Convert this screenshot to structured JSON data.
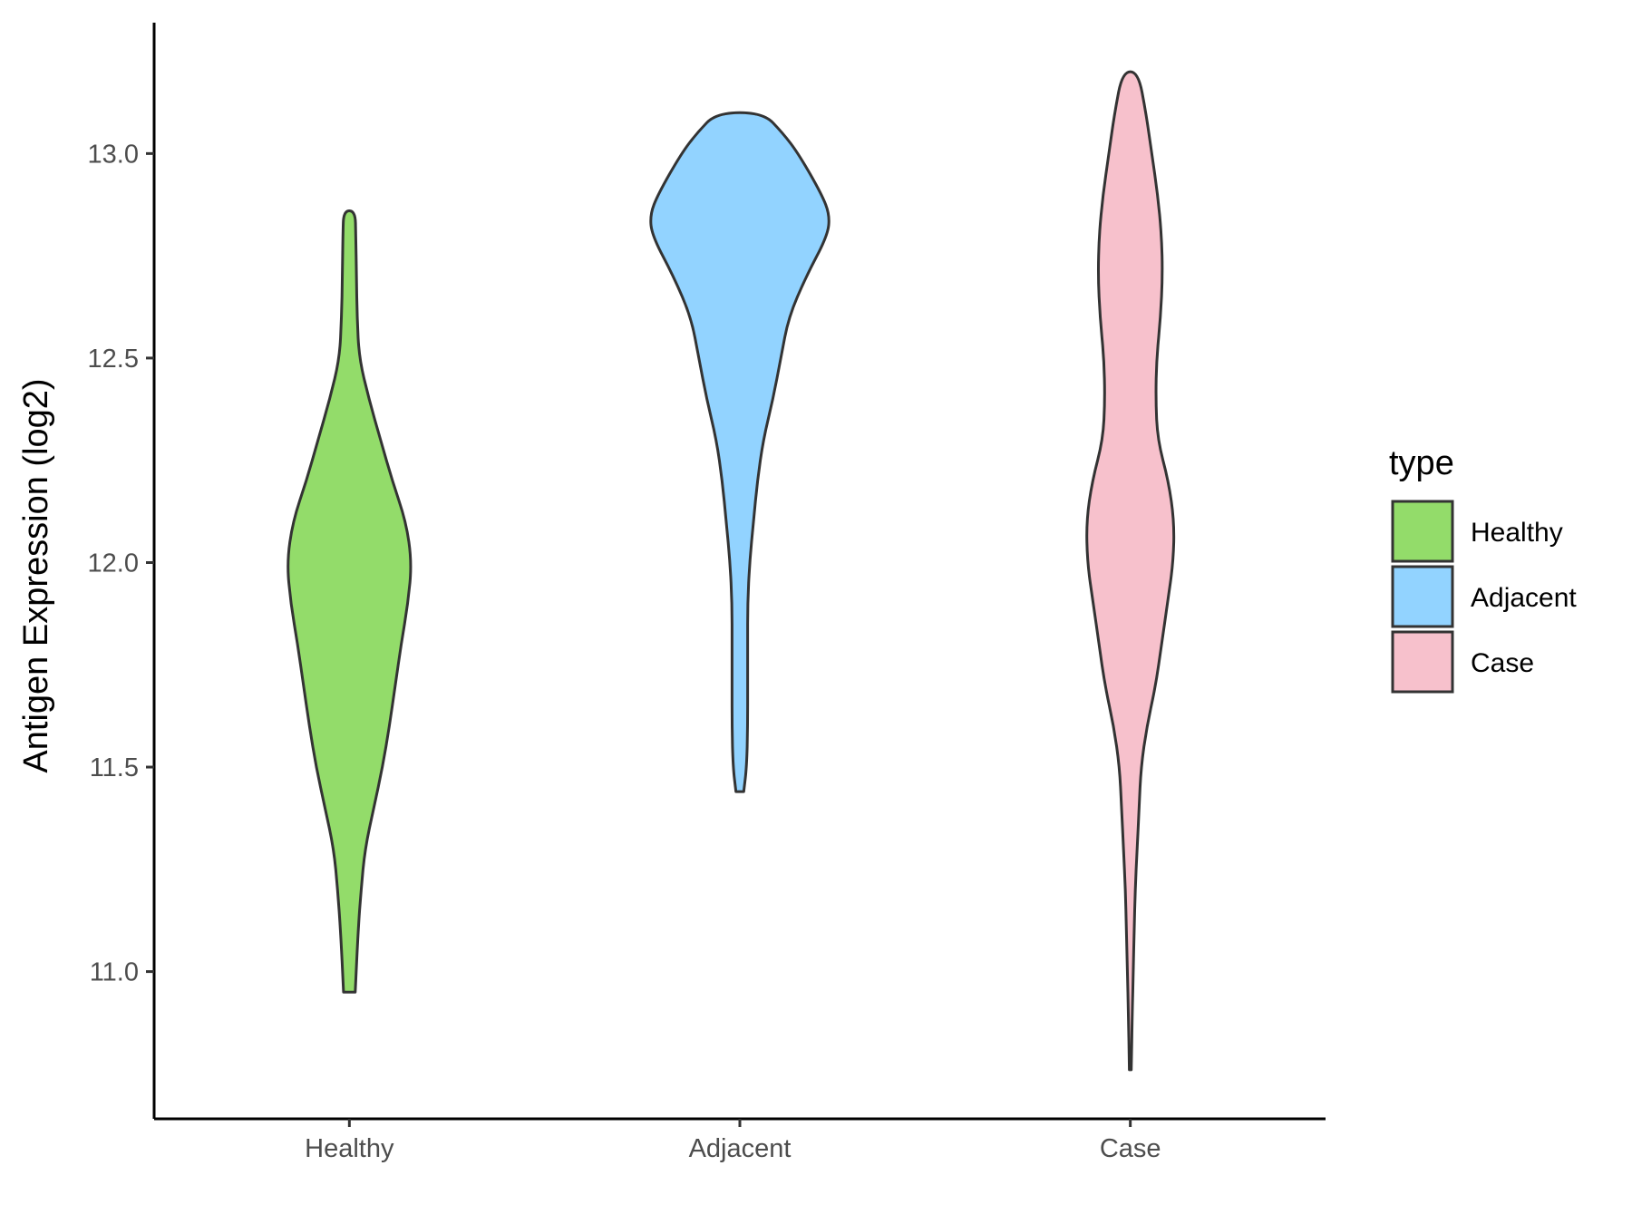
{
  "chart_data": {
    "type": "violin",
    "title": "",
    "xlabel": "",
    "ylabel": "Antigen Expression (log2)",
    "ylim": [
      10.64,
      13.32
    ],
    "yticks": [
      "11.0",
      "11.5",
      "12.0",
      "12.5",
      "13.0"
    ],
    "ytick_values": [
      11.0,
      11.5,
      12.0,
      12.5,
      13.0
    ],
    "categories": [
      "Healthy",
      "Adjacent",
      "Case"
    ],
    "grid": false,
    "legend": {
      "title": "type",
      "position": "right",
      "entries": [
        "Healthy",
        "Adjacent",
        "Case"
      ]
    },
    "series": [
      {
        "name": "Healthy",
        "color": "#93dc6a",
        "min": 10.95,
        "max": 12.86,
        "profile": [
          [
            10.95,
            0.03
          ],
          [
            11.1,
            0.045
          ],
          [
            11.2,
            0.06
          ],
          [
            11.3,
            0.08
          ],
          [
            11.4,
            0.125
          ],
          [
            11.5,
            0.17
          ],
          [
            11.6,
            0.205
          ],
          [
            11.7,
            0.235
          ],
          [
            11.8,
            0.265
          ],
          [
            11.9,
            0.3
          ],
          [
            12.0,
            0.32
          ],
          [
            12.1,
            0.29
          ],
          [
            12.2,
            0.22
          ],
          [
            12.3,
            0.16
          ],
          [
            12.4,
            0.1
          ],
          [
            12.5,
            0.05
          ],
          [
            12.6,
            0.04
          ],
          [
            12.7,
            0.036
          ],
          [
            12.8,
            0.033
          ],
          [
            12.86,
            0.03
          ]
        ]
      },
      {
        "name": "Adjacent",
        "color": "#92d3ff",
        "min": 11.44,
        "max": 13.1,
        "profile": [
          [
            11.44,
            0.02
          ],
          [
            11.5,
            0.035
          ],
          [
            11.6,
            0.04
          ],
          [
            11.7,
            0.04
          ],
          [
            11.8,
            0.04
          ],
          [
            11.9,
            0.04
          ],
          [
            12.0,
            0.05
          ],
          [
            12.1,
            0.07
          ],
          [
            12.2,
            0.09
          ],
          [
            12.3,
            0.12
          ],
          [
            12.4,
            0.17
          ],
          [
            12.5,
            0.21
          ],
          [
            12.6,
            0.25
          ],
          [
            12.7,
            0.34
          ],
          [
            12.8,
            0.45
          ],
          [
            12.85,
            0.46
          ],
          [
            12.9,
            0.42
          ],
          [
            13.0,
            0.3
          ],
          [
            13.05,
            0.22
          ],
          [
            13.1,
            0.12
          ]
        ]
      },
      {
        "name": "Case",
        "color": "#f7c1cc",
        "min": 10.76,
        "max": 13.2,
        "profile": [
          [
            10.76,
            0.005
          ],
          [
            10.9,
            0.01
          ],
          [
            11.0,
            0.015
          ],
          [
            11.1,
            0.02
          ],
          [
            11.2,
            0.025
          ],
          [
            11.3,
            0.035
          ],
          [
            11.4,
            0.045
          ],
          [
            11.5,
            0.055
          ],
          [
            11.6,
            0.085
          ],
          [
            11.7,
            0.13
          ],
          [
            11.8,
            0.16
          ],
          [
            11.9,
            0.19
          ],
          [
            12.0,
            0.22
          ],
          [
            12.1,
            0.225
          ],
          [
            12.2,
            0.195
          ],
          [
            12.3,
            0.14
          ],
          [
            12.4,
            0.13
          ],
          [
            12.5,
            0.135
          ],
          [
            12.6,
            0.155
          ],
          [
            12.7,
            0.165
          ],
          [
            12.8,
            0.16
          ],
          [
            12.9,
            0.14
          ],
          [
            13.0,
            0.11
          ],
          [
            13.1,
            0.08
          ],
          [
            13.2,
            0.04
          ]
        ]
      }
    ]
  }
}
